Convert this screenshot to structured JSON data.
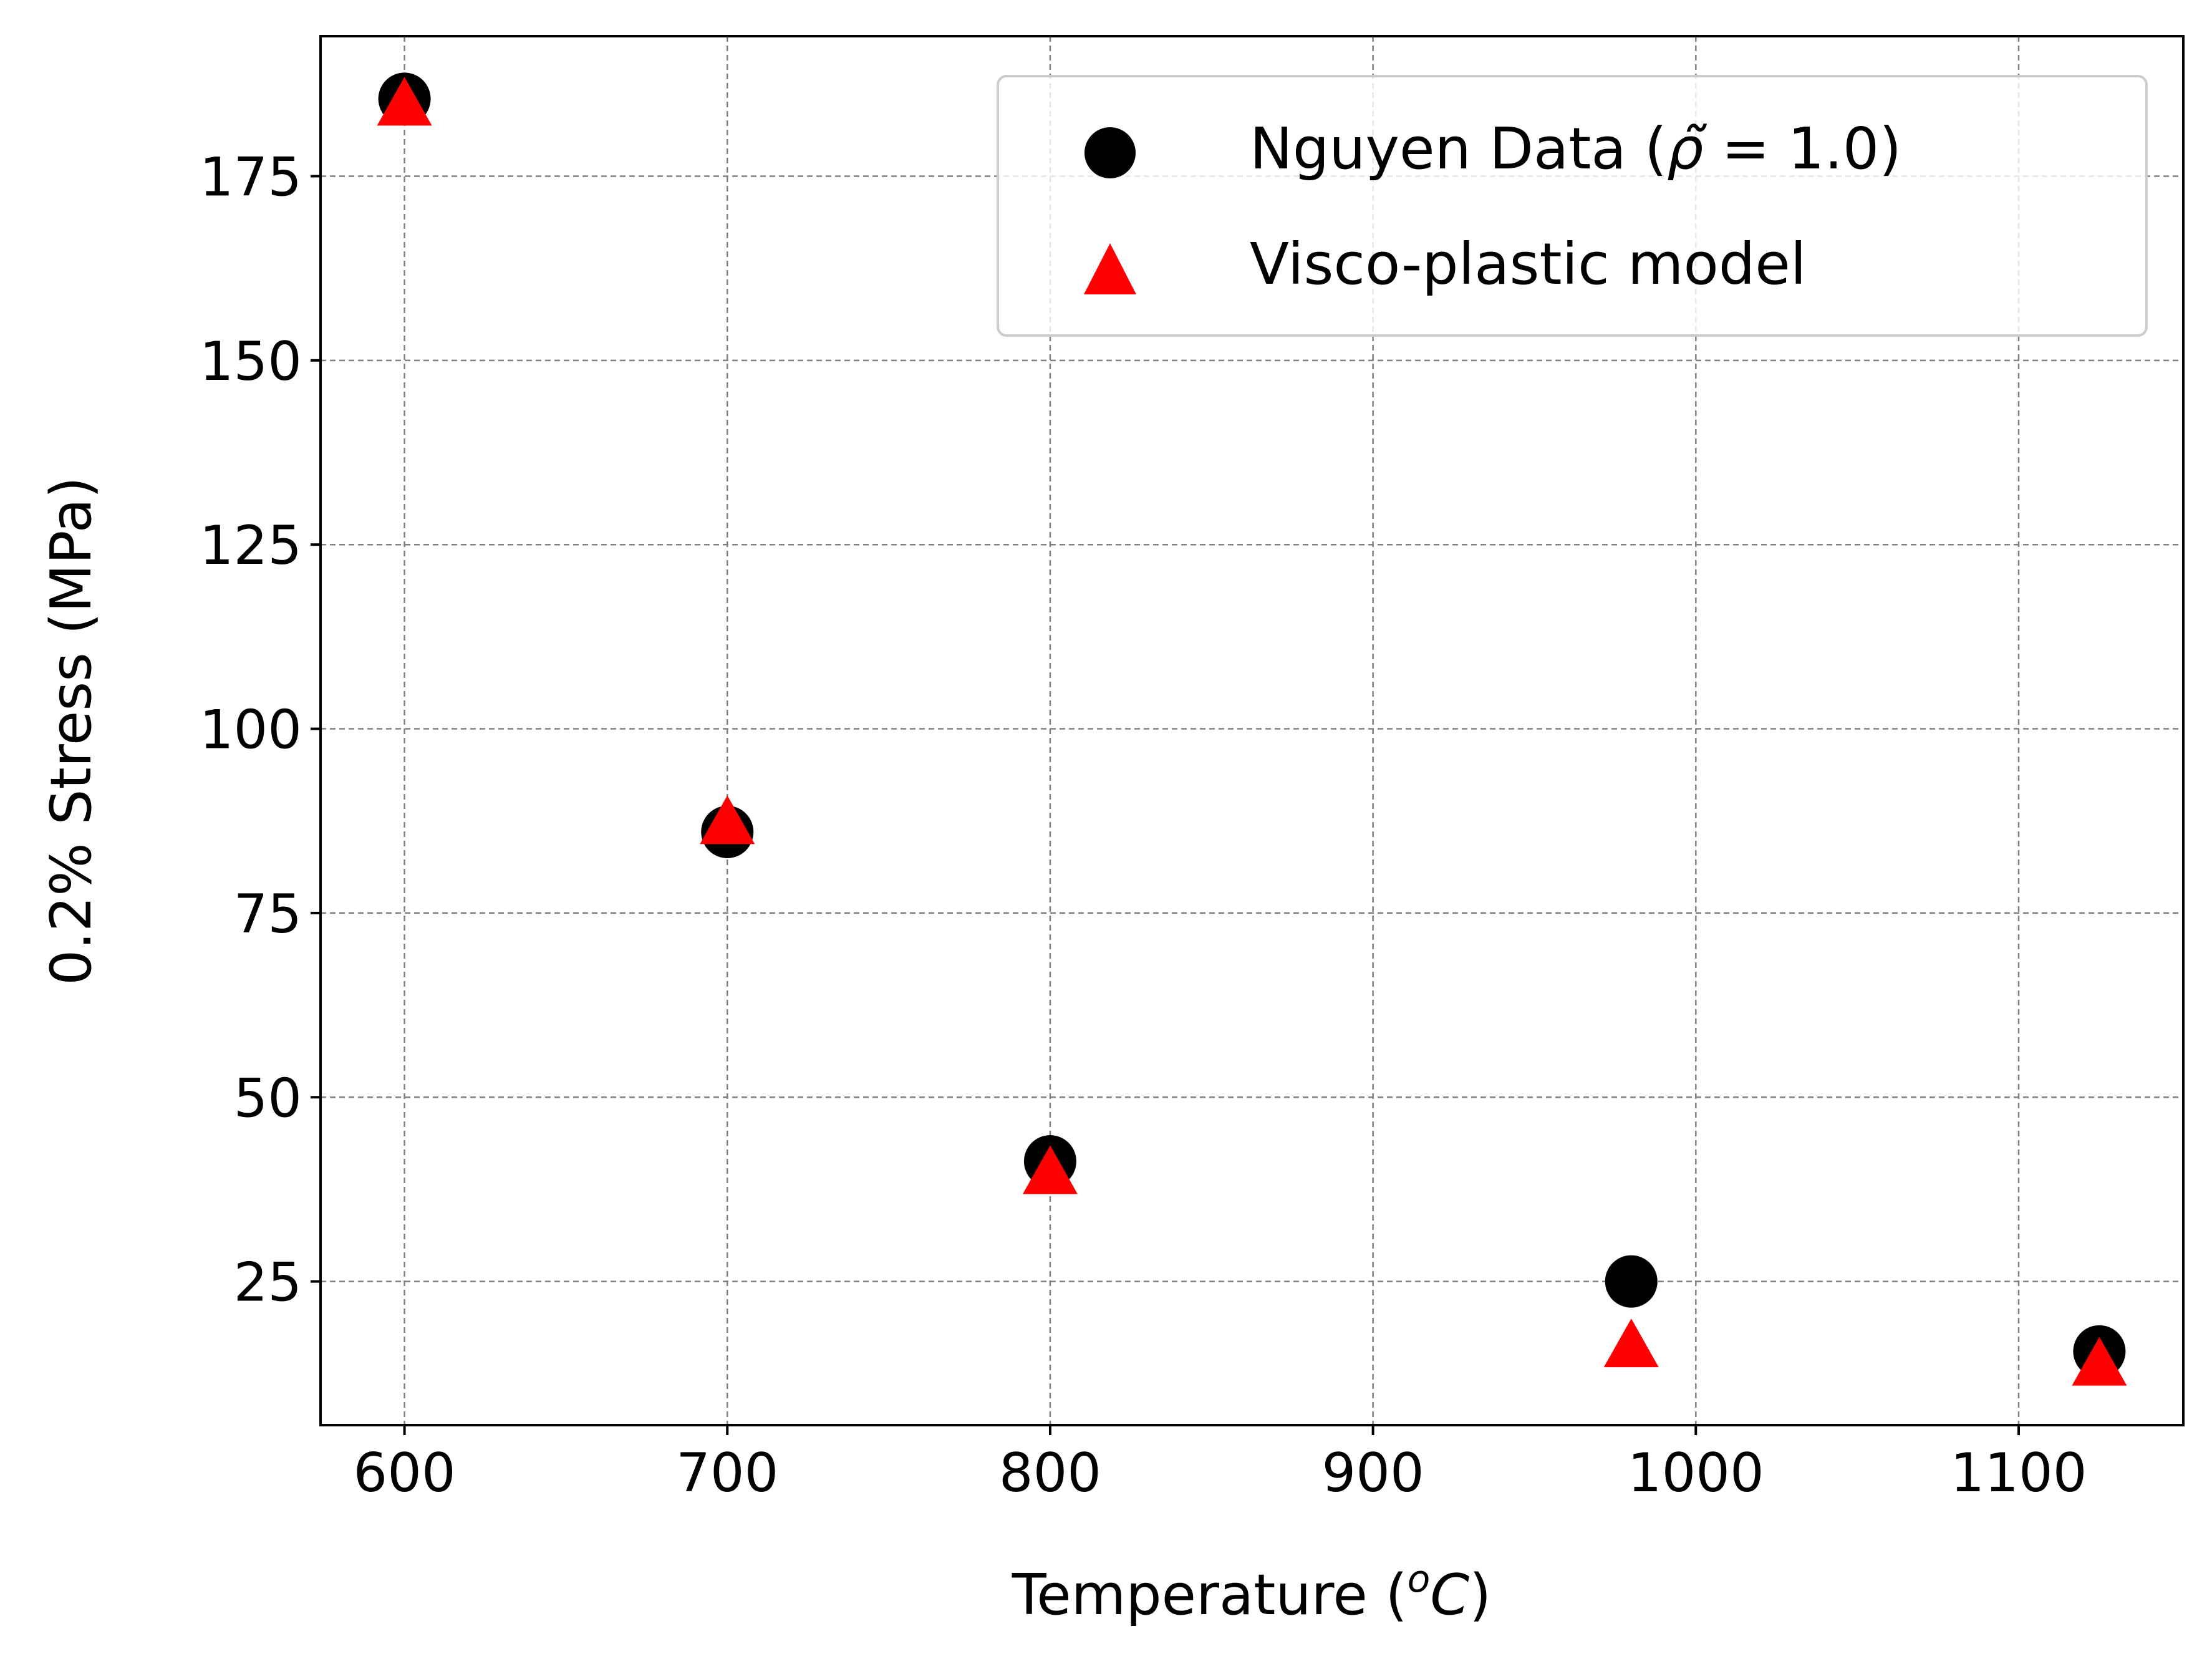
{
  "chart_data": {
    "type": "scatter",
    "xlabel": "Temperature (",
    "xlabel_sup": "o",
    "xlabel_unit": "C",
    "xlabel_close": ")",
    "ylabel": "0.2% Stress (MPa)",
    "xlim": [
      574,
      1151
    ],
    "ylim": [
      5.5,
      194
    ],
    "xticks": [
      600,
      700,
      800,
      900,
      1000,
      1100
    ],
    "yticks": [
      25,
      50,
      75,
      100,
      125,
      150,
      175
    ],
    "grid": true,
    "legend_position": "top-right",
    "series": [
      {
        "name": "Nguyen Data (",
        "name_symbol": "ρ̃",
        "name_rest": " = 1.0)",
        "marker": "circle",
        "color": "#000000",
        "x": [
          600,
          700,
          800,
          980,
          1125
        ],
        "y": [
          185.5,
          86,
          41.3,
          25,
          15.5
        ]
      },
      {
        "name": "Visco-plastic model",
        "marker": "triangle",
        "color": "#ff0000",
        "x": [
          600,
          700,
          800,
          980,
          1125
        ],
        "y": [
          184.5,
          87,
          39.5,
          16,
          13.5
        ]
      }
    ]
  }
}
